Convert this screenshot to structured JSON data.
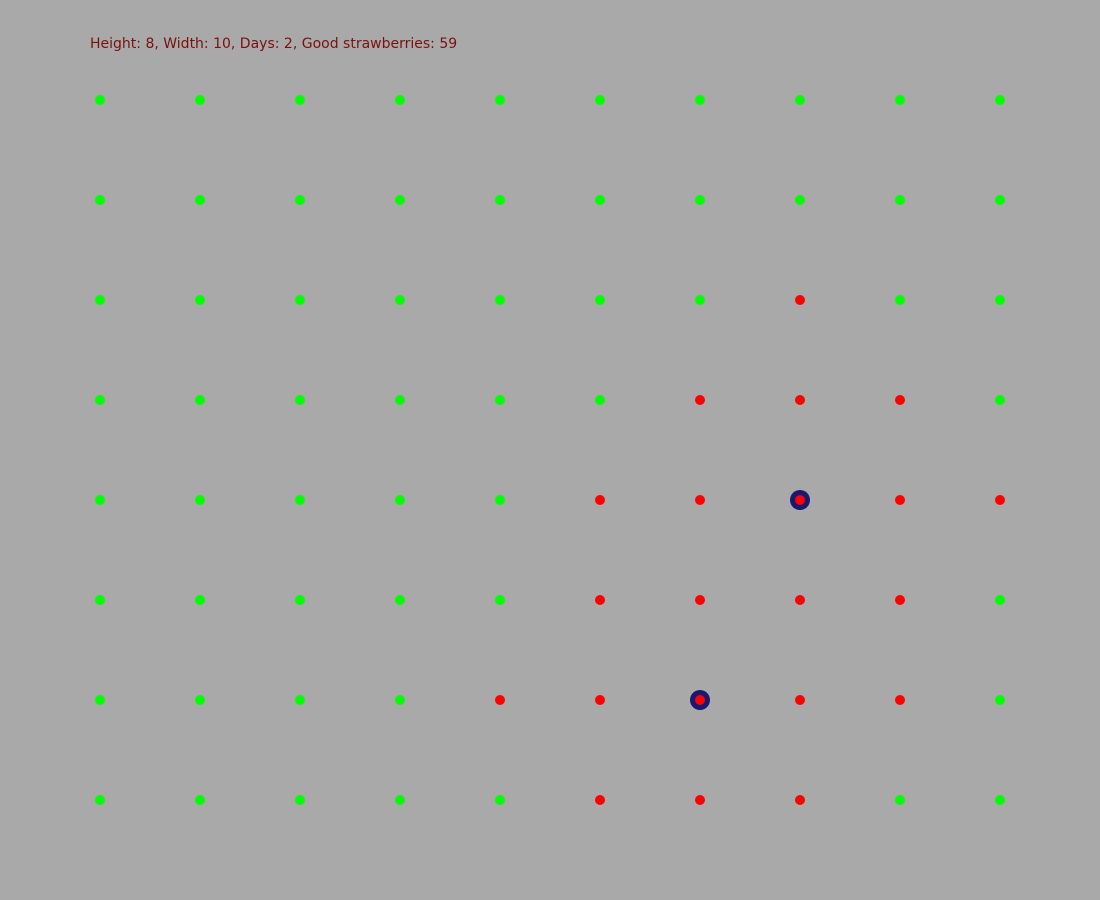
{
  "status_text": "Height: 8, Width: 10, Days: 2, Good strawberries: 59",
  "colors": {
    "background": "#a9a9a9",
    "good": "#00ff00",
    "rotten": "#ff0000",
    "initial_rotten_ring": "#191970",
    "status_text": "#7a1010"
  },
  "grid": {
    "height": 8,
    "width": 10,
    "cells": [
      "GGGGGGGGGG",
      "GGGGGGGGGG",
      "GGGGGGGRGG",
      "GGGGGGRRRG",
      "GGGGGRRRRR",
      "GGGGGRRRRG",
      "GGGGRRRRRG",
      "GGGGGRRRGG"
    ],
    "initial_rotten": [
      {
        "row": 4,
        "col": 7
      },
      {
        "row": 6,
        "col": 6
      }
    ]
  }
}
